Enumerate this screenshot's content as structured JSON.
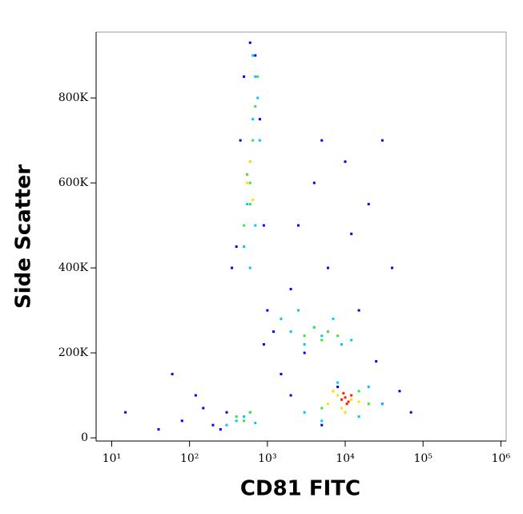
{
  "chart_data": {
    "type": "scatter",
    "x_label": "CD81 FITC",
    "y_label": "Side Scatter",
    "x_scale": "log",
    "xlim": [
      6.3,
      1170000
    ],
    "ylim": [
      -7500,
      955000
    ],
    "xticks": [
      {
        "value": 10,
        "label": "10¹"
      },
      {
        "value": 100,
        "label": "10²"
      },
      {
        "value": 1000,
        "label": "10³"
      },
      {
        "value": 10000,
        "label": "10⁴"
      },
      {
        "value": 100000,
        "label": "10⁵"
      },
      {
        "value": 1000000,
        "label": "10⁶"
      }
    ],
    "yticks": [
      0,
      {
        "value": 200000,
        "label": "200K"
      },
      {
        "value": 400000,
        "label": "400K"
      },
      {
        "value": 600000,
        "label": "600K"
      },
      {
        "value": 800000,
        "label": "800K"
      }
    ],
    "series": [
      {
        "color": "#0000ff",
        "x": [
          15,
          40,
          60,
          80,
          120,
          150,
          200,
          250,
          300,
          350,
          400,
          450,
          500,
          600,
          700,
          800,
          900,
          1000,
          1200,
          1500,
          2000,
          2500,
          3000,
          4000,
          5000,
          6000,
          8000,
          10000,
          15000,
          20000,
          25000,
          30000,
          40000,
          50000,
          70000,
          2000,
          5000,
          12000,
          30000,
          900
        ],
        "y": [
          60000,
          20000,
          150000,
          40000,
          100000,
          70000,
          30000,
          20000,
          60000,
          400000,
          450000,
          700000,
          850000,
          930000,
          900000,
          750000,
          500000,
          300000,
          250000,
          150000,
          350000,
          500000,
          200000,
          600000,
          700000,
          400000,
          120000,
          650000,
          300000,
          550000,
          180000,
          80000,
          400000,
          110000,
          60000,
          100000,
          30000,
          480000,
          700000,
          220000
        ]
      },
      {
        "color": "#00c8ff",
        "x": [
          500,
          550,
          600,
          650,
          700,
          750,
          800,
          600,
          700,
          650,
          1500,
          2000,
          2500,
          3000,
          4000,
          5000,
          7000,
          9000,
          12000,
          3000,
          5000,
          15000,
          20000,
          30000,
          8000,
          300,
          400,
          500,
          600,
          700
        ],
        "y": [
          450000,
          550000,
          650000,
          750000,
          850000,
          800000,
          700000,
          400000,
          500000,
          900000,
          280000,
          250000,
          300000,
          220000,
          260000,
          240000,
          280000,
          220000,
          230000,
          60000,
          40000,
          50000,
          120000,
          80000,
          130000,
          30000,
          40000,
          50000,
          60000,
          35000
        ]
      },
      {
        "color": "#40e040",
        "x": [
          500,
          600,
          650,
          700,
          750,
          600,
          550,
          3000,
          4000,
          5000,
          6000,
          8000,
          5000,
          7000,
          10000,
          15000,
          20000,
          400,
          500,
          600
        ],
        "y": [
          500000,
          600000,
          700000,
          780000,
          850000,
          550000,
          620000,
          240000,
          260000,
          230000,
          250000,
          240000,
          70000,
          110000,
          60000,
          110000,
          80000,
          50000,
          40000,
          60000
        ]
      },
      {
        "color": "#ffe000",
        "x": [
          550,
          600,
          650,
          6000,
          8000,
          9000,
          12000,
          15000,
          10000,
          7000
        ],
        "y": [
          600000,
          650000,
          560000,
          80000,
          100000,
          70000,
          90000,
          85000,
          60000,
          110000
        ]
      },
      {
        "color": "#ff2000",
        "x": [
          9000,
          10000,
          11000,
          12000,
          10500,
          9500
        ],
        "y": [
          90000,
          95000,
          85000,
          100000,
          80000,
          105000
        ]
      }
    ]
  }
}
